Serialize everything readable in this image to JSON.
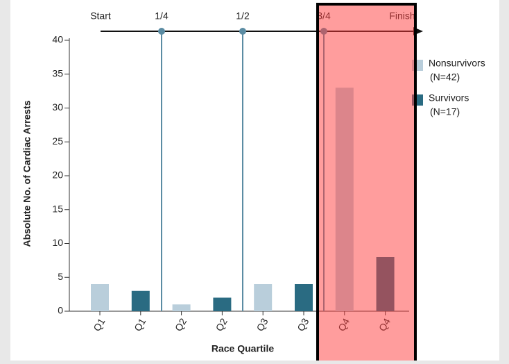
{
  "chart_data": {
    "type": "bar",
    "y_label": "Absolute No. of Cardiac Arrests",
    "x_label": "Race Quartile",
    "categories": [
      "Q1",
      "Q1",
      "Q2",
      "Q2",
      "Q3",
      "Q3",
      "Q4",
      "Q4"
    ],
    "series": [
      {
        "name": "Nonsurvivors",
        "count_label": "(N=42)",
        "color": "#b9cedb",
        "values": [
          4,
          null,
          1,
          null,
          4,
          null,
          33,
          null
        ]
      },
      {
        "name": "Survivors",
        "count_label": "(N=17)",
        "color": "#2a6b82",
        "values": [
          null,
          3,
          null,
          2,
          null,
          4,
          null,
          8
        ]
      }
    ],
    "ylim": [
      0,
      40
    ],
    "yticks": [
      0,
      5,
      10,
      15,
      20,
      25,
      30,
      35,
      40
    ],
    "timeline": [
      "Start",
      "1/4",
      "1/2",
      "3/4",
      "Finish"
    ]
  }
}
